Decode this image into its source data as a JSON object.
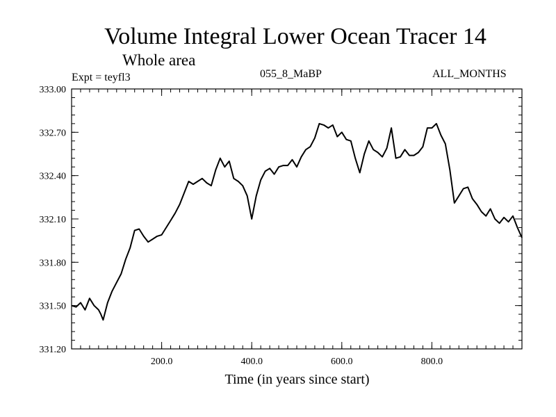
{
  "header": {
    "title": "Volume Integral Lower Ocean Tracer 14",
    "subtitle": "Whole area",
    "expt": "Expt = teyfl3",
    "period": "055_8_MaBP",
    "months": "ALL_MONTHS"
  },
  "chart_data": {
    "type": "line",
    "title": "Volume Integral Lower Ocean Tracer 14",
    "xlabel": "Time (in years since start)",
    "ylabel": "",
    "xlim": [
      0,
      1000
    ],
    "ylim": [
      331.2,
      333.0
    ],
    "xticks": [
      200,
      400,
      600,
      800
    ],
    "xtick_labels": [
      "200.0",
      "400.0",
      "600.0",
      "800.0"
    ],
    "yticks": [
      331.2,
      331.5,
      331.8,
      332.1,
      332.4,
      332.7,
      333.0
    ],
    "ytick_labels": [
      "331.20",
      "331.50",
      "331.80",
      "332.10",
      "332.40",
      "332.70",
      "333.00"
    ],
    "series": [
      {
        "name": "Tracer 14",
        "x": [
          0,
          10,
          20,
          30,
          40,
          50,
          60,
          65,
          70,
          80,
          90,
          100,
          110,
          120,
          130,
          140,
          150,
          160,
          170,
          180,
          190,
          200,
          210,
          220,
          230,
          240,
          250,
          260,
          270,
          280,
          290,
          300,
          310,
          320,
          330,
          340,
          350,
          360,
          370,
          380,
          390,
          400,
          410,
          420,
          430,
          440,
          450,
          460,
          470,
          480,
          490,
          500,
          510,
          520,
          530,
          540,
          550,
          560,
          570,
          580,
          590,
          600,
          610,
          620,
          630,
          640,
          650,
          660,
          670,
          680,
          690,
          700,
          710,
          720,
          730,
          740,
          750,
          760,
          770,
          780,
          790,
          800,
          810,
          820,
          830,
          840,
          850,
          860,
          870,
          880,
          890,
          900,
          910,
          920,
          930,
          940,
          950,
          960,
          970,
          980,
          990,
          1000
        ],
        "values": [
          331.5,
          331.49,
          331.52,
          331.47,
          331.55,
          331.5,
          331.47,
          331.44,
          331.4,
          331.52,
          331.6,
          331.66,
          331.72,
          331.82,
          331.9,
          332.02,
          332.03,
          331.98,
          331.94,
          331.96,
          331.98,
          331.99,
          332.04,
          332.09,
          332.14,
          332.2,
          332.28,
          332.36,
          332.34,
          332.36,
          332.38,
          332.35,
          332.33,
          332.44,
          332.52,
          332.46,
          332.5,
          332.38,
          332.36,
          332.33,
          332.26,
          332.1,
          332.26,
          332.37,
          332.43,
          332.45,
          332.41,
          332.46,
          332.47,
          332.47,
          332.51,
          332.46,
          332.53,
          332.58,
          332.6,
          332.66,
          332.76,
          332.75,
          332.73,
          332.75,
          332.67,
          332.7,
          332.65,
          332.64,
          332.52,
          332.42,
          332.55,
          332.64,
          332.58,
          332.56,
          332.53,
          332.59,
          332.73,
          332.52,
          332.53,
          332.58,
          332.54,
          332.54,
          332.56,
          332.6,
          332.73,
          332.73,
          332.76,
          332.68,
          332.62,
          332.44,
          332.21,
          332.26,
          332.31,
          332.32,
          332.24,
          332.2,
          332.15,
          332.12,
          332.17,
          332.1,
          332.07,
          332.11,
          332.08,
          332.12,
          332.04,
          331.97
        ]
      }
    ]
  }
}
